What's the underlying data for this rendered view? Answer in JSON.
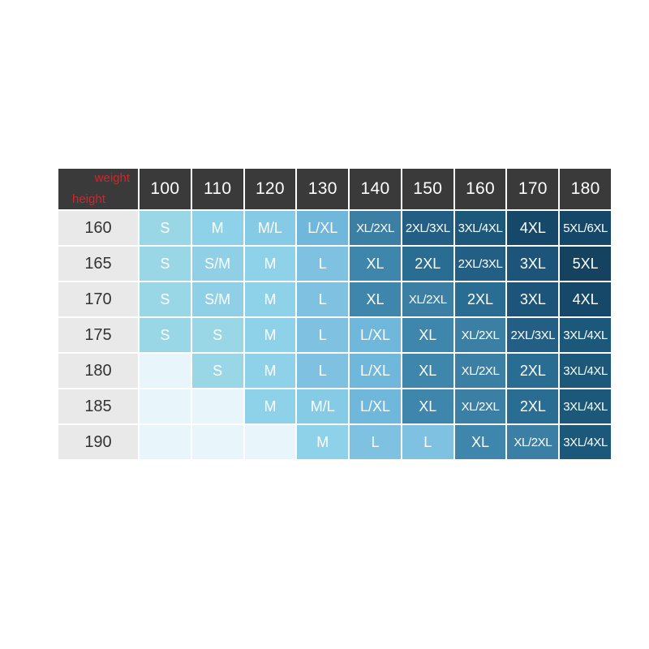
{
  "chart": {
    "corner_weight": "weight",
    "corner_height": "height",
    "weights": [
      "100",
      "110",
      "120",
      "130",
      "140",
      "150",
      "160",
      "170",
      "180"
    ],
    "rows": [
      {
        "height": "160",
        "sizes": [
          "S",
          "M",
          "M/L",
          "L/XL",
          "XL/2XL",
          "2XL/3XL",
          "3XL/4XL",
          "4XL",
          "5XL/6XL"
        ]
      },
      {
        "height": "165",
        "sizes": [
          "S",
          "S/M",
          "M",
          "L",
          "XL",
          "2XL",
          "2XL/3XL",
          "3XL",
          "5XL"
        ]
      },
      {
        "height": "170",
        "sizes": [
          "S",
          "S/M",
          "M",
          "L",
          "XL",
          "XL/2XL",
          "2XL",
          "3XL",
          "4XL"
        ]
      },
      {
        "height": "175",
        "sizes": [
          "S",
          "S",
          "M",
          "L",
          "L/XL",
          "XL",
          "XL/2XL",
          "2XL/3XL",
          "3XL/4XL"
        ]
      },
      {
        "height": "180",
        "sizes": [
          "",
          "S",
          "M",
          "L",
          "L/XL",
          "XL",
          "XL/2XL",
          "2XL",
          "3XL/4XL"
        ]
      },
      {
        "height": "185",
        "sizes": [
          "",
          "",
          "M",
          "M/L",
          "L/XL",
          "XL",
          "XL/2XL",
          "2XL",
          "3XL/4XL"
        ]
      },
      {
        "height": "190",
        "sizes": [
          "",
          "",
          "",
          "M",
          "L",
          "L",
          "XL",
          "XL/2XL",
          "3XL/4XL"
        ]
      }
    ],
    "colors": {
      "header_bg": "#3a3a3a",
      "corner_text": "#d8232a",
      "row_header_bg": "#e9e9e9",
      "empty_cell": "#e8f5fb",
      "S": "#9ad7e6",
      "S/M": "#8fd0e7",
      "M": "#8dd2e8",
      "M/L": "#86cbe6",
      "L": "#7ec1e1",
      "L/XL": "#6fb7db",
      "XL": "#3f86ad",
      "XL/2XL": "#3b7fa5",
      "2XL": "#2a6d93",
      "2XL/3XL": "#235f85",
      "3XL": "#1d5479",
      "3XL/4XL": "#1c5879",
      "4XL": "#16486a",
      "5XL": "#15435f",
      "5XL/6XL": "#154868"
    }
  }
}
